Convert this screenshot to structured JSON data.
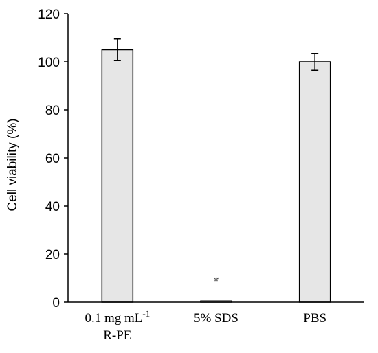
{
  "chart_data": {
    "type": "bar",
    "title": "",
    "xlabel": "",
    "ylabel": "Cell viability (%)",
    "ylim": [
      0,
      120
    ],
    "yticks": [
      0,
      20,
      40,
      60,
      80,
      100,
      120
    ],
    "categories": [
      {
        "line1": "0.1 mg mL",
        "sup": "-1",
        "line2": "R-PE"
      },
      {
        "line1": "5% SDS",
        "sup": "",
        "line2": ""
      },
      {
        "line1": "PBS",
        "sup": "",
        "line2": ""
      }
    ],
    "values": [
      105,
      0.5,
      100
    ],
    "errors": [
      4.5,
      0.3,
      3.5
    ],
    "annotations": [
      "",
      "*",
      ""
    ],
    "bar_color": "#e6e6e6",
    "bar_edge_color": "#000000",
    "grid": false,
    "legend": "none"
  }
}
